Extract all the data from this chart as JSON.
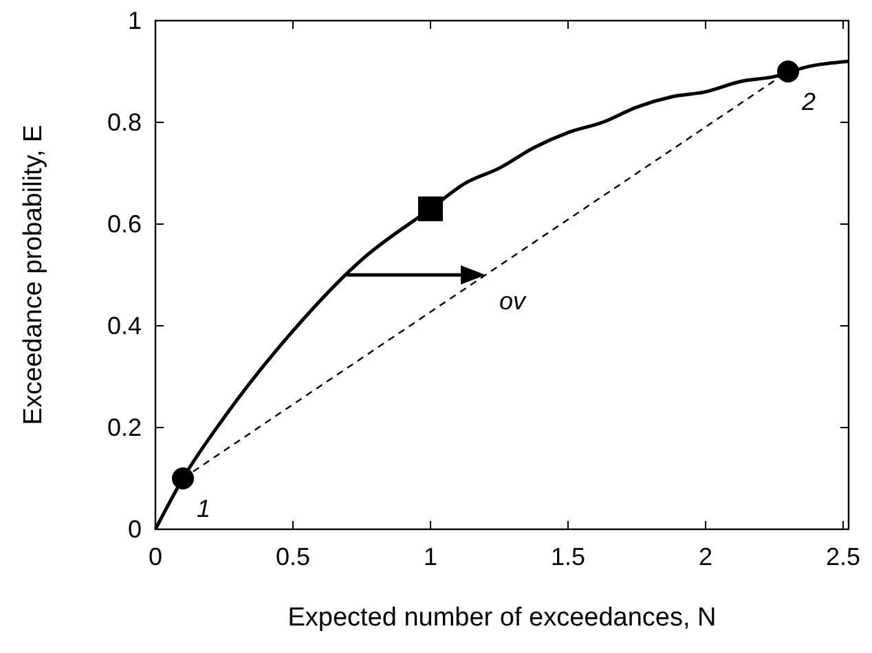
{
  "chart_data": {
    "type": "line",
    "xlabel": "Expected number of exceedances, N",
    "ylabel": "Exceedance probability, E",
    "xlim": [
      0,
      2.52
    ],
    "ylim": [
      0,
      1
    ],
    "xticks": [
      0,
      0.5,
      1,
      1.5,
      2,
      2.5
    ],
    "yticks": [
      0,
      0.2,
      0.4,
      0.6,
      0.8,
      1
    ],
    "grid": false,
    "series": [
      {
        "color": "#000000",
        "line_style": "solid",
        "x": [
          0,
          0.1,
          0.25,
          0.5,
          0.75,
          1,
          1.125,
          1.25,
          1.375,
          1.5,
          1.625,
          1.75,
          1.875,
          2,
          2.125,
          2.25,
          2.375,
          2.52
        ],
        "values": [
          0,
          0.1,
          0.22,
          0.39,
          0.53,
          0.63,
          0.68,
          0.71,
          0.75,
          0.78,
          0.8,
          0.83,
          0.85,
          0.86,
          0.88,
          0.89,
          0.91,
          0.92
        ]
      },
      {
        "color": "#000000",
        "line_style": "dashed",
        "x": [
          0.1,
          2.3
        ],
        "values": [
          0.1,
          0.9
        ]
      },
      {
        "type": "scatter",
        "color": "#000000",
        "marker": "circle",
        "x": [
          0.1,
          2.3
        ],
        "values": [
          0.1,
          0.9
        ]
      },
      {
        "type": "scatter",
        "color": "#000000",
        "marker": "square",
        "x": [
          1
        ],
        "values": [
          0.63
        ]
      }
    ],
    "annotations": [
      {
        "text": "ov",
        "x": 1.2,
        "y": 0.5
      },
      {
        "text": "1",
        "x": 0.1,
        "y": 0.1
      },
      {
        "text": "2",
        "x": 2.3,
        "y": 0.9
      }
    ]
  }
}
